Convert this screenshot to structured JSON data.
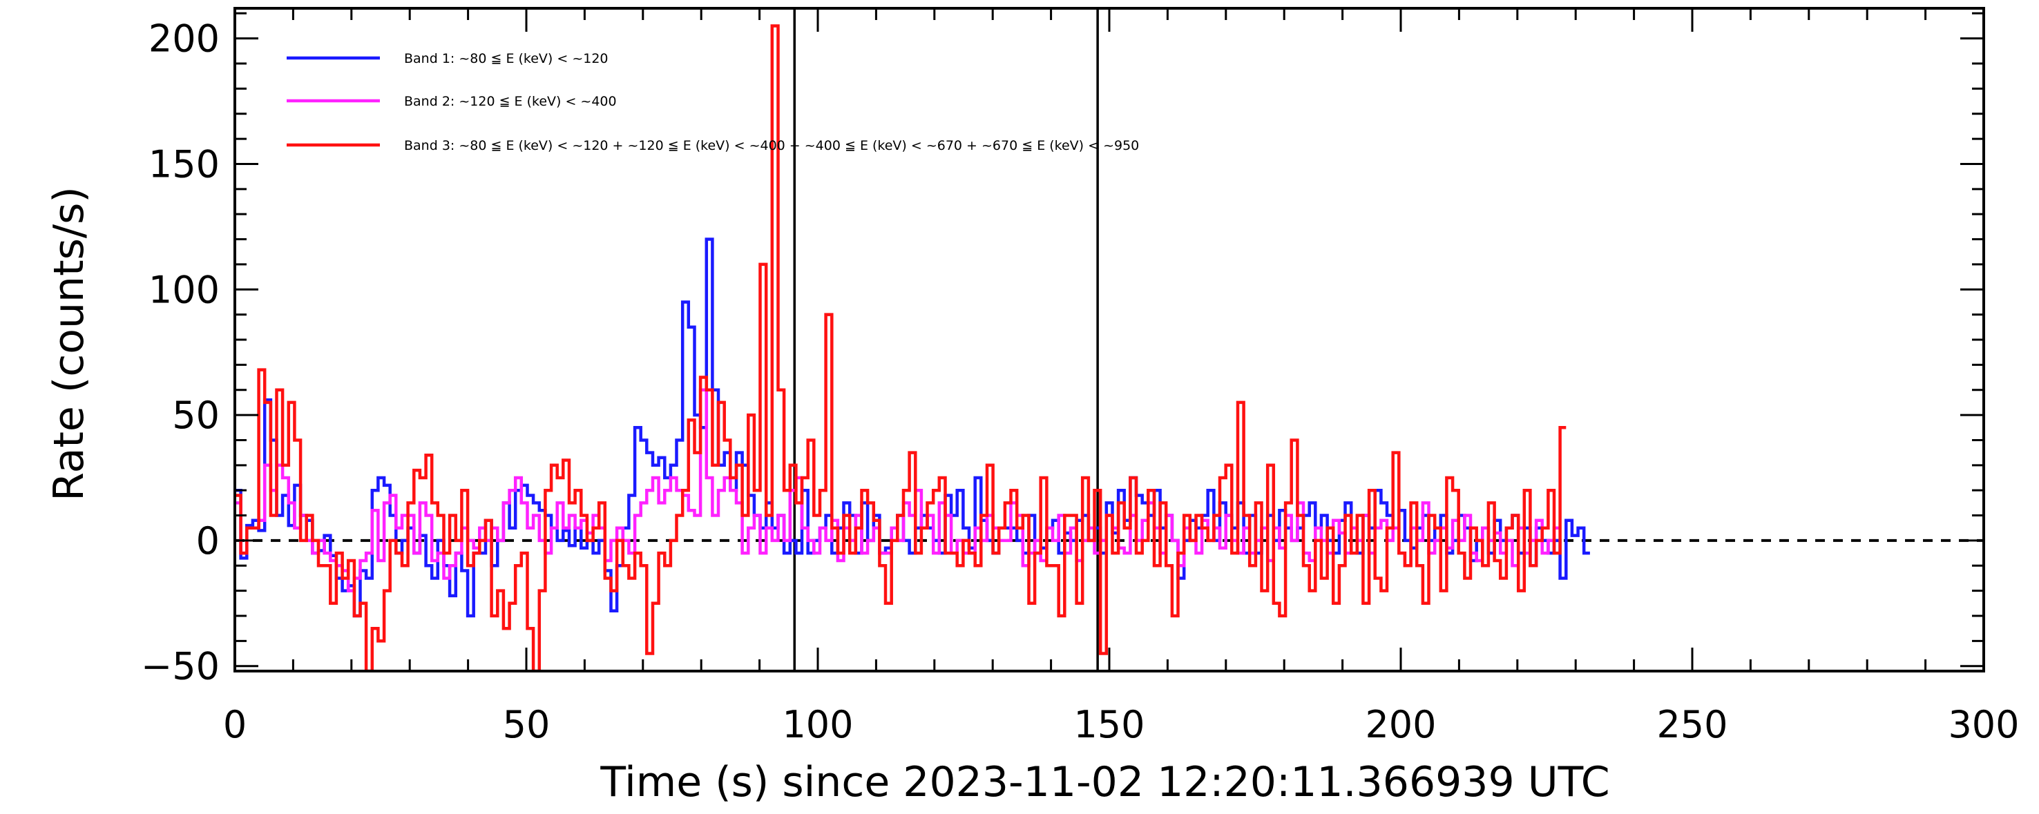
{
  "chart_data": {
    "type": "line",
    "xlabel": "Time (s) since 2023-11-02 12:20:11.366939 UTC",
    "ylabel": "Rate (counts/s)",
    "xlim": [
      0,
      300
    ],
    "ylim": [
      -52,
      212
    ],
    "xticks": [
      0,
      50,
      100,
      150,
      200,
      250,
      300
    ],
    "yticks": [
      -50,
      0,
      50,
      100,
      150,
      200
    ],
    "xtick_labels": [
      "0",
      "50",
      "100",
      "150",
      "200",
      "250",
      "300"
    ],
    "ytick_labels": [
      "−50",
      "0",
      "50",
      "100",
      "150",
      "200"
    ],
    "vertical_lines": [
      96.0,
      148.0
    ],
    "reference_line": {
      "y": 0,
      "style": "dashed"
    },
    "bin_width": 1.024,
    "legend_position": "top-left",
    "series": [
      {
        "name": "Band 1: ~80 ≦ E (keV) < ~120",
        "color": "#1a1aff",
        "values": [
          20,
          -7,
          6,
          8,
          4,
          56,
          40,
          10,
          18,
          6,
          22,
          10,
          8,
          -5,
          -4,
          2,
          -6,
          -15,
          -20,
          -18,
          -30,
          -12,
          -15,
          20,
          25,
          22,
          10,
          -5,
          0,
          5,
          -5,
          2,
          -10,
          -15,
          0,
          -10,
          -22,
          -5,
          -12,
          -30,
          -5,
          -5,
          8,
          -10,
          0,
          15,
          5,
          20,
          22,
          18,
          15,
          12,
          10,
          5,
          0,
          4,
          -2,
          5,
          -3,
          0,
          -5,
          0,
          -12,
          -28,
          -10,
          5,
          18,
          45,
          40,
          35,
          30,
          33,
          25,
          30,
          40,
          95,
          85,
          50,
          45,
          120,
          60,
          30,
          35,
          20,
          35,
          30,
          18,
          10,
          5,
          15,
          5,
          10,
          -5,
          0,
          -5,
          20,
          -5,
          0,
          5,
          10,
          -5,
          5,
          15,
          10,
          -5,
          15,
          0,
          10,
          -5,
          -3,
          5,
          10,
          0,
          -5,
          5,
          10,
          5,
          0,
          -5,
          18,
          10,
          20,
          5,
          -3,
          25,
          8,
          0,
          -5,
          5,
          5,
          5,
          0,
          -5,
          10,
          -5,
          -3,
          5,
          8,
          -5,
          3,
          0,
          8,
          10,
          0,
          5,
          -5,
          15,
          3,
          20,
          8,
          25,
          18,
          15,
          10,
          20,
          5,
          10,
          0,
          -15,
          0,
          8,
          5,
          10,
          20,
          0,
          15,
          10,
          5,
          15,
          -5,
          10,
          -5,
          5,
          10,
          0,
          12,
          5,
          0,
          5,
          10,
          15,
          5,
          10,
          0,
          -5,
          8,
          15,
          5,
          -5,
          10,
          5,
          20,
          15,
          10,
          5,
          12,
          0,
          -3,
          5,
          10,
          0,
          5,
          10,
          -5,
          0,
          10,
          5,
          -8,
          0,
          5,
          -5,
          8,
          0,
          5,
          10,
          -5,
          5,
          -10,
          5,
          0,
          -5,
          0,
          -15,
          8,
          2,
          5,
          -5
        ]
      },
      {
        "name": "Band 2: ~120 ≦ E (keV) < ~400",
        "color": "#ff22ff",
        "values": [
          15,
          -5,
          5,
          5,
          8,
          30,
          20,
          30,
          25,
          15,
          5,
          10,
          0,
          -5,
          0,
          -5,
          -8,
          -10,
          -12,
          -20,
          -15,
          -8,
          -5,
          12,
          -8,
          15,
          18,
          5,
          10,
          10,
          -5,
          15,
          10,
          -8,
          -5,
          -15,
          -10,
          -5,
          5,
          0,
          -3,
          5,
          0,
          5,
          0,
          15,
          20,
          25,
          15,
          5,
          10,
          0,
          -5,
          5,
          15,
          5,
          10,
          5,
          8,
          3,
          10,
          5,
          -8,
          0,
          5,
          0,
          -5,
          10,
          15,
          20,
          25,
          15,
          20,
          25,
          20,
          18,
          12,
          10,
          60,
          25,
          10,
          20,
          25,
          20,
          15,
          -5,
          5,
          10,
          -5,
          5,
          0,
          10,
          0,
          20,
          25,
          5,
          0,
          -5,
          5,
          0,
          8,
          -8,
          5,
          0,
          10,
          -5,
          0,
          5,
          -5,
          -5,
          5,
          0,
          15,
          10,
          20,
          5,
          10,
          -5,
          15,
          10,
          -5,
          0,
          -5,
          -5,
          5,
          0,
          10,
          5,
          0,
          0,
          15,
          10,
          -10,
          -5,
          0,
          -8,
          5,
          0,
          10,
          -5,
          5,
          -8,
          0,
          5,
          -5,
          0,
          10,
          5,
          -3,
          -5,
          10,
          0,
          8,
          15,
          5,
          -5,
          10,
          0,
          -10,
          5,
          0,
          -5,
          8,
          0,
          5,
          -3,
          10,
          0,
          -5,
          5,
          -5,
          0,
          5,
          -8,
          5,
          -3,
          10,
          0,
          15,
          -5,
          -8,
          5,
          0,
          -5,
          8,
          3,
          -5,
          5,
          0,
          10,
          -5,
          5,
          8,
          0,
          5,
          -5,
          -10,
          5,
          0,
          15,
          -5,
          0,
          5,
          -3,
          8,
          0,
          10,
          -5,
          -8,
          5,
          0,
          3,
          -5,
          0,
          -10,
          5,
          -5,
          0,
          8,
          -5,
          0,
          5
        ]
      },
      {
        "name": "Band 3: ~80 ≦ E (keV) < ~120 + ~120 ≦ E (keV) < ~400 + ~400 ≦ E (keV) < ~670 + ~670 ≦ E (keV) < ~950",
        "color": "#ff1111",
        "values": [
          18,
          -5,
          5,
          5,
          68,
          55,
          10,
          60,
          30,
          55,
          40,
          0,
          10,
          0,
          -10,
          -10,
          -25,
          -5,
          -15,
          -8,
          -30,
          -25,
          -52,
          -35,
          -40,
          -20,
          0,
          -5,
          -10,
          15,
          28,
          25,
          34,
          15,
          10,
          -5,
          10,
          0,
          20,
          -10,
          -5,
          0,
          8,
          -30,
          -20,
          -35,
          -25,
          -10,
          -5,
          -35,
          -52,
          -20,
          20,
          30,
          25,
          32,
          15,
          20,
          10,
          0,
          5,
          15,
          -15,
          -20,
          0,
          -10,
          -15,
          -5,
          -10,
          -45,
          -25,
          -5,
          -10,
          0,
          10,
          20,
          48,
          35,
          65,
          60,
          30,
          55,
          40,
          25,
          30,
          10,
          50,
          20,
          110,
          10,
          205,
          60,
          20,
          30,
          15,
          25,
          40,
          10,
          20,
          90,
          5,
          -5,
          10,
          -5,
          5,
          20,
          15,
          8,
          -10,
          -25,
          0,
          10,
          20,
          35,
          -5,
          5,
          15,
          20,
          25,
          -5,
          -5,
          -10,
          0,
          -5,
          -10,
          10,
          30,
          -5,
          5,
          15,
          20,
          5,
          10,
          -25,
          -5,
          25,
          -10,
          -10,
          -30,
          10,
          10,
          -25,
          25,
          0,
          20,
          -45,
          10,
          -5,
          15,
          5,
          25,
          -5,
          0,
          20,
          -10,
          15,
          -10,
          -30,
          -5,
          10,
          0,
          10,
          5,
          0,
          10,
          25,
          30,
          -5,
          55,
          10,
          -10,
          15,
          -20,
          30,
          -25,
          -30,
          15,
          40,
          10,
          -10,
          -20,
          0,
          -15,
          5,
          -25,
          -10,
          10,
          -5,
          10,
          -25,
          20,
          -15,
          -20,
          5,
          35,
          -5,
          -10,
          15,
          -10,
          -25,
          10,
          5,
          -20,
          25,
          20,
          -5,
          -15,
          5,
          0,
          -10,
          15,
          -8,
          -15,
          5,
          10,
          -20,
          20,
          -10,
          0,
          5,
          20,
          -5,
          45
        ]
      }
    ]
  }
}
